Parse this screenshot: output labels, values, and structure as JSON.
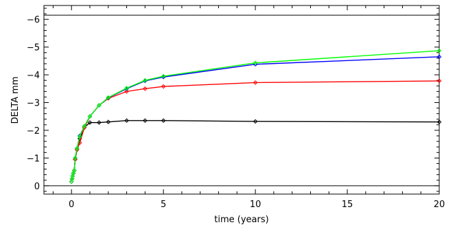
{
  "chart_data": {
    "type": "line",
    "xlabel": "time (years)",
    "ylabel": "DELTA mm",
    "xlim": [
      -1.5,
      20
    ],
    "ylim": [
      0.3,
      -6.5
    ],
    "y_axis_inverted": true,
    "x_ticks": [
      0,
      5,
      10,
      15,
      20
    ],
    "y_ticks": [
      0,
      -1,
      -2,
      -3,
      -4,
      -5,
      -6
    ],
    "x_tick_labels": [
      "0",
      "5",
      "10",
      "15",
      "20"
    ],
    "y_tick_labels": [
      "0",
      "−1",
      "−2",
      "−3",
      "−4",
      "−5",
      "−6"
    ],
    "reference_lines": [
      0,
      -6.15
    ],
    "grid": false,
    "legend": "none",
    "marker": "diamond",
    "series": [
      {
        "color": "#000000",
        "x": [
          0,
          0.03,
          0.06,
          0.1,
          0.15,
          0.2,
          0.3,
          0.45,
          0.7,
          1,
          1.5,
          2,
          3,
          4,
          5,
          10,
          20
        ],
        "y": [
          -0.15,
          -0.25,
          -0.35,
          -0.45,
          -0.55,
          -0.95,
          -1.3,
          -1.7,
          -2.1,
          -2.28,
          -2.28,
          -2.3,
          -2.35,
          -2.35,
          -2.35,
          -2.32,
          -2.3
        ]
      },
      {
        "color": "#ff0000",
        "x": [
          0,
          0.03,
          0.06,
          0.1,
          0.15,
          0.2,
          0.3,
          0.45,
          0.7,
          1,
          1.5,
          2,
          3,
          4,
          5,
          10,
          20
        ],
        "y": [
          -0.15,
          -0.25,
          -0.35,
          -0.45,
          -0.55,
          -0.95,
          -1.3,
          -1.55,
          -2.1,
          -2.5,
          -2.9,
          -3.15,
          -3.4,
          -3.5,
          -3.58,
          -3.72,
          -3.78
        ]
      },
      {
        "color": "#0000ff",
        "x": [
          0,
          0.03,
          0.06,
          0.1,
          0.15,
          0.2,
          0.3,
          0.45,
          0.7,
          1,
          1.5,
          2,
          3,
          4,
          5,
          10,
          20
        ],
        "y": [
          -0.15,
          -0.25,
          -0.35,
          -0.45,
          -0.55,
          -1.0,
          -1.35,
          -1.8,
          -2.15,
          -2.5,
          -2.9,
          -3.17,
          -3.5,
          -3.78,
          -3.92,
          -4.38,
          -4.65
        ]
      },
      {
        "color": "#00ff00",
        "x": [
          0,
          0.03,
          0.06,
          0.1,
          0.15,
          0.2,
          0.3,
          0.45,
          0.7,
          1,
          1.5,
          2,
          3,
          4,
          5,
          10,
          20
        ],
        "y": [
          -0.15,
          -0.25,
          -0.35,
          -0.45,
          -0.55,
          -1.0,
          -1.35,
          -1.78,
          -2.15,
          -2.5,
          -2.9,
          -3.18,
          -3.52,
          -3.8,
          -3.95,
          -4.43,
          -4.87
        ]
      }
    ]
  }
}
